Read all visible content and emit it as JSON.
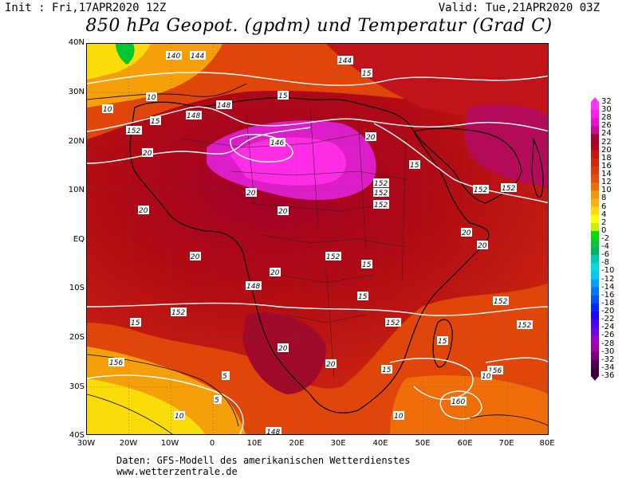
{
  "header": {
    "init": "Init : Fri,17APR2020 12Z",
    "valid": "Valid: Tue,21APR2020 03Z"
  },
  "title": "850 hPa Geopot. (gpdm) und Temperatur (Grad C)",
  "axes": {
    "lat_labels": [
      "40N",
      "30N",
      "20N",
      "10N",
      "EQ",
      "10S",
      "20S",
      "30S",
      "40S"
    ],
    "lon_labels": [
      "30W",
      "20W",
      "10W",
      "0",
      "10E",
      "20E",
      "30E",
      "40E",
      "50E",
      "60E",
      "70E",
      "80E"
    ]
  },
  "colorbar": {
    "labels": [
      "32",
      "30",
      "28",
      "26",
      "24",
      "22",
      "20",
      "18",
      "16",
      "14",
      "12",
      "10",
      "8",
      "6",
      "4",
      "2",
      "0",
      "-2",
      "-4",
      "-6",
      "-8",
      "-10",
      "-12",
      "-14",
      "-16",
      "-18",
      "-20",
      "-22",
      "-24",
      "-26",
      "-28",
      "-30",
      "-32",
      "-34",
      "-36"
    ],
    "colors": [
      "#ff33ff",
      "#ff1ee6",
      "#e60fd2",
      "#c80a96",
      "#a00032",
      "#b4001e",
      "#c8140a",
      "#d2280a",
      "#dc3c0a",
      "#e6500a",
      "#f06e0a",
      "#f5960a",
      "#fab40a",
      "#fadc0a",
      "#ffff00",
      "#c8f000",
      "#00dc00",
      "#00c832",
      "#00b464",
      "#00c8b4",
      "#00dcdc",
      "#00c8ff",
      "#00a0ff",
      "#0078ff",
      "#0050ff",
      "#0028ff",
      "#1e00ff",
      "#4600ff",
      "#6e00e6",
      "#9600c8",
      "#a000a0",
      "#780078",
      "#500050",
      "#3c003c"
    ]
  },
  "map_labels": {
    "geopotential": [
      "140",
      "144",
      "148",
      "146",
      "152",
      "156",
      "160"
    ],
    "temperature": [
      "5",
      "10",
      "15",
      "20"
    ]
  },
  "footer": {
    "source": "Daten: GFS-Modell des amerikanischen Wetterdienstes",
    "url": "www.wetterzentrale.de"
  }
}
